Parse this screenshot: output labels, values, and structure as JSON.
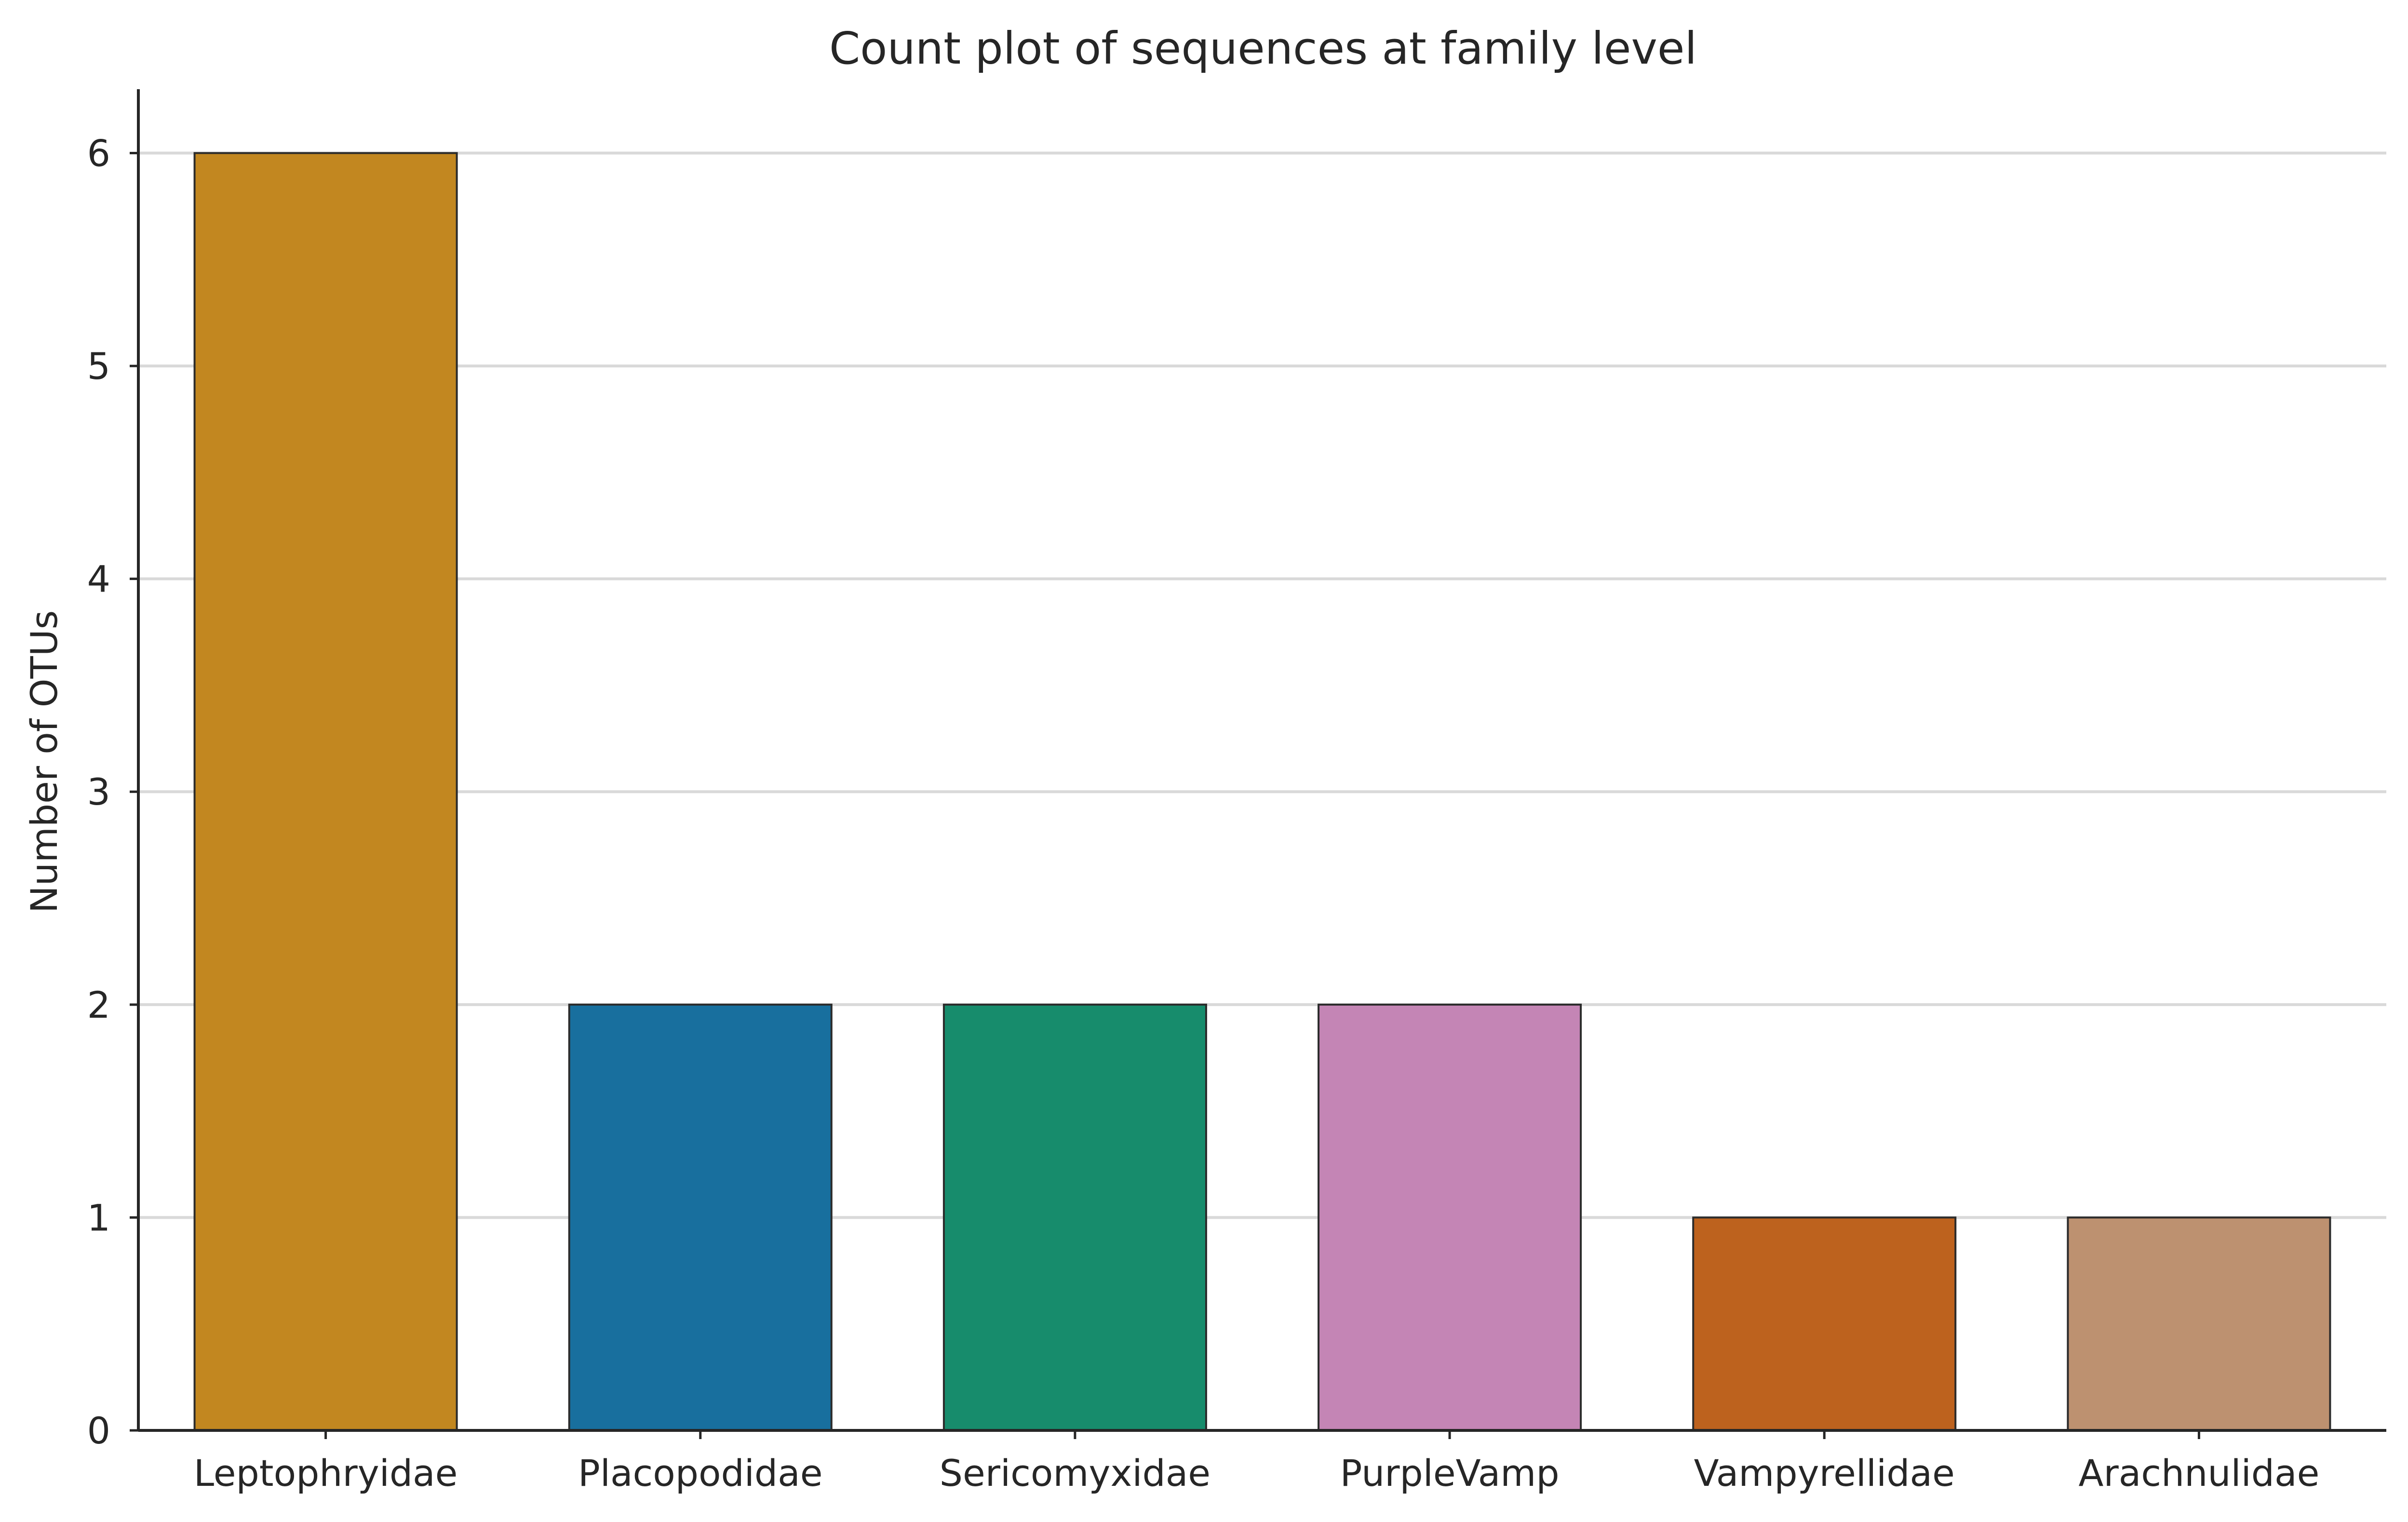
{
  "chart_data": {
    "type": "bar",
    "title": "Count plot of sequences at family level",
    "xlabel": "",
    "ylabel": "Number of OTUs",
    "categories": [
      "Leptophryidae",
      "Placopodidae",
      "Sericomyxidae",
      "PurpleVamp",
      "Vampyrellidae",
      "Arachnulidae"
    ],
    "values": [
      6,
      2,
      2,
      2,
      1,
      1
    ],
    "colors": [
      "#c28720",
      "#186f9e",
      "#178c6c",
      "#c485b5",
      "#bd621e",
      "#bd9170"
    ],
    "ylim": [
      0,
      6.3
    ],
    "yticks": [
      "0",
      "1",
      "2",
      "3",
      "4",
      "5",
      "6"
    ],
    "grid": "horizontal",
    "legend": "none"
  }
}
